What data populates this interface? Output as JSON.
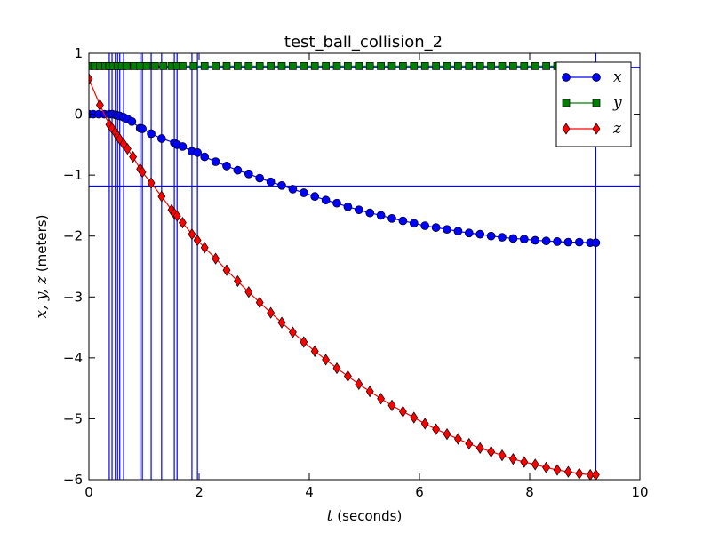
{
  "chart_data": {
    "type": "line",
    "title": "test_ball_collision_2",
    "xlabel_var": "t",
    "xlabel_unit": "(seconds)",
    "ylabel_var": "x, y, z",
    "ylabel_unit": "(meters)",
    "xlim": [
      0,
      10
    ],
    "ylim": [
      -6,
      1
    ],
    "xticks": [
      0,
      2,
      4,
      6,
      8,
      10
    ],
    "yticks": [
      1,
      0,
      -1,
      -2,
      -3,
      -4,
      -5,
      -6
    ],
    "xtick_labels": [
      "0",
      "2",
      "4",
      "6",
      "8",
      "10"
    ],
    "ytick_labels": [
      "1",
      "0",
      "−1",
      "−2",
      "−3",
      "−4",
      "−5",
      "−6"
    ],
    "grid": false,
    "legend_position": "top-right",
    "vertical_lines_x": [
      0.37,
      0.42,
      0.48,
      0.52,
      0.56,
      0.63,
      0.93,
      0.97,
      1.13,
      1.32,
      1.55,
      1.6,
      1.87,
      1.97,
      9.2
    ],
    "horizontal_lines_y": [
      0.77,
      -1.18
    ],
    "series": [
      {
        "name": "x",
        "color": "#0000ff",
        "marker": "circle",
        "points": [
          [
            0,
            0
          ],
          [
            0.08,
            0
          ],
          [
            0.18,
            0
          ],
          [
            0.28,
            0
          ],
          [
            0.37,
            0
          ],
          [
            0.42,
            0
          ],
          [
            0.48,
            -0.01
          ],
          [
            0.52,
            -0.02
          ],
          [
            0.56,
            -0.03
          ],
          [
            0.63,
            -0.05
          ],
          [
            0.7,
            -0.08
          ],
          [
            0.78,
            -0.12
          ],
          [
            0.93,
            -0.23
          ],
          [
            0.97,
            -0.24
          ],
          [
            1.13,
            -0.32
          ],
          [
            1.32,
            -0.4
          ],
          [
            1.55,
            -0.47
          ],
          [
            1.6,
            -0.5
          ],
          [
            1.7,
            -0.53
          ],
          [
            1.87,
            -0.61
          ],
          [
            1.97,
            -0.63
          ],
          [
            2.1,
            -0.7
          ],
          [
            2.3,
            -0.78
          ],
          [
            2.5,
            -0.85
          ],
          [
            2.7,
            -0.92
          ],
          [
            2.9,
            -0.98
          ],
          [
            3.1,
            -1.05
          ],
          [
            3.3,
            -1.11
          ],
          [
            3.5,
            -1.17
          ],
          [
            3.7,
            -1.23
          ],
          [
            3.9,
            -1.29
          ],
          [
            4.1,
            -1.35
          ],
          [
            4.3,
            -1.41
          ],
          [
            4.5,
            -1.46
          ],
          [
            4.7,
            -1.52
          ],
          [
            4.9,
            -1.57
          ],
          [
            5.1,
            -1.62
          ],
          [
            5.3,
            -1.66
          ],
          [
            5.5,
            -1.71
          ],
          [
            5.7,
            -1.75
          ],
          [
            5.9,
            -1.79
          ],
          [
            6.1,
            -1.83
          ],
          [
            6.3,
            -1.86
          ],
          [
            6.5,
            -1.89
          ],
          [
            6.7,
            -1.92
          ],
          [
            6.9,
            -1.95
          ],
          [
            7.1,
            -1.97
          ],
          [
            7.3,
            -2.0
          ],
          [
            7.5,
            -2.02
          ],
          [
            7.7,
            -2.04
          ],
          [
            7.9,
            -2.05
          ],
          [
            8.1,
            -2.07
          ],
          [
            8.3,
            -2.08
          ],
          [
            8.5,
            -2.09
          ],
          [
            8.7,
            -2.1
          ],
          [
            8.9,
            -2.1
          ],
          [
            9.1,
            -2.11
          ],
          [
            9.2,
            -2.11
          ]
        ]
      },
      {
        "name": "y",
        "color": "#008000",
        "marker": "square",
        "points": [
          [
            0,
            0.79
          ],
          [
            0.1,
            0.79
          ],
          [
            0.2,
            0.79
          ],
          [
            0.3,
            0.79
          ],
          [
            0.37,
            0.79
          ],
          [
            0.44,
            0.79
          ],
          [
            0.52,
            0.79
          ],
          [
            0.6,
            0.79
          ],
          [
            0.68,
            0.79
          ],
          [
            0.82,
            0.79
          ],
          [
            0.93,
            0.79
          ],
          [
            1.05,
            0.79
          ],
          [
            1.2,
            0.79
          ],
          [
            1.35,
            0.79
          ],
          [
            1.5,
            0.79
          ],
          [
            1.6,
            0.79
          ],
          [
            1.7,
            0.79
          ],
          [
            1.9,
            0.79
          ],
          [
            2.1,
            0.79
          ],
          [
            2.3,
            0.79
          ],
          [
            2.5,
            0.79
          ],
          [
            2.7,
            0.79
          ],
          [
            2.9,
            0.79
          ],
          [
            3.1,
            0.79
          ],
          [
            3.3,
            0.79
          ],
          [
            3.5,
            0.79
          ],
          [
            3.7,
            0.79
          ],
          [
            3.9,
            0.79
          ],
          [
            4.1,
            0.79
          ],
          [
            4.3,
            0.79
          ],
          [
            4.5,
            0.79
          ],
          [
            4.7,
            0.79
          ],
          [
            4.9,
            0.79
          ],
          [
            5.1,
            0.79
          ],
          [
            5.3,
            0.79
          ],
          [
            5.5,
            0.79
          ],
          [
            5.7,
            0.79
          ],
          [
            5.9,
            0.79
          ],
          [
            6.1,
            0.79
          ],
          [
            6.3,
            0.79
          ],
          [
            6.5,
            0.79
          ],
          [
            6.7,
            0.79
          ],
          [
            6.9,
            0.79
          ],
          [
            7.1,
            0.79
          ],
          [
            7.3,
            0.79
          ],
          [
            7.5,
            0.79
          ],
          [
            7.7,
            0.79
          ],
          [
            7.9,
            0.79
          ],
          [
            8.1,
            0.79
          ],
          [
            8.3,
            0.79
          ],
          [
            8.5,
            0.79
          ],
          [
            8.7,
            0.79
          ],
          [
            8.9,
            0.79
          ],
          [
            9.1,
            0.79
          ],
          [
            9.2,
            0.79
          ]
        ]
      },
      {
        "name": "z",
        "color": "#ff0000",
        "marker": "diamond",
        "points": [
          [
            0,
            0.58
          ],
          [
            0.2,
            0.15
          ],
          [
            0.37,
            -0.17
          ],
          [
            0.42,
            -0.23
          ],
          [
            0.48,
            -0.3
          ],
          [
            0.52,
            -0.36
          ],
          [
            0.56,
            -0.41
          ],
          [
            0.63,
            -0.49
          ],
          [
            0.7,
            -0.57
          ],
          [
            0.8,
            -0.7
          ],
          [
            0.93,
            -0.9
          ],
          [
            0.97,
            -0.95
          ],
          [
            1.13,
            -1.13
          ],
          [
            1.32,
            -1.35
          ],
          [
            1.5,
            -1.57
          ],
          [
            1.55,
            -1.63
          ],
          [
            1.6,
            -1.67
          ],
          [
            1.7,
            -1.78
          ],
          [
            1.87,
            -1.97
          ],
          [
            1.97,
            -2.07
          ],
          [
            2.1,
            -2.19
          ],
          [
            2.3,
            -2.37
          ],
          [
            2.5,
            -2.56
          ],
          [
            2.7,
            -2.74
          ],
          [
            2.9,
            -2.92
          ],
          [
            3.1,
            -3.09
          ],
          [
            3.3,
            -3.26
          ],
          [
            3.5,
            -3.42
          ],
          [
            3.7,
            -3.58
          ],
          [
            3.9,
            -3.74
          ],
          [
            4.1,
            -3.89
          ],
          [
            4.3,
            -4.03
          ],
          [
            4.5,
            -4.17
          ],
          [
            4.7,
            -4.3
          ],
          [
            4.9,
            -4.43
          ],
          [
            5.1,
            -4.55
          ],
          [
            5.3,
            -4.67
          ],
          [
            5.5,
            -4.78
          ],
          [
            5.7,
            -4.88
          ],
          [
            5.9,
            -4.98
          ],
          [
            6.1,
            -5.08
          ],
          [
            6.3,
            -5.17
          ],
          [
            6.5,
            -5.25
          ],
          [
            6.7,
            -5.33
          ],
          [
            6.9,
            -5.41
          ],
          [
            7.1,
            -5.48
          ],
          [
            7.3,
            -5.54
          ],
          [
            7.5,
            -5.6
          ],
          [
            7.7,
            -5.66
          ],
          [
            7.9,
            -5.71
          ],
          [
            8.1,
            -5.75
          ],
          [
            8.3,
            -5.8
          ],
          [
            8.5,
            -5.84
          ],
          [
            8.7,
            -5.87
          ],
          [
            8.9,
            -5.9
          ],
          [
            9.1,
            -5.92
          ],
          [
            9.2,
            -5.92
          ]
        ]
      }
    ]
  }
}
